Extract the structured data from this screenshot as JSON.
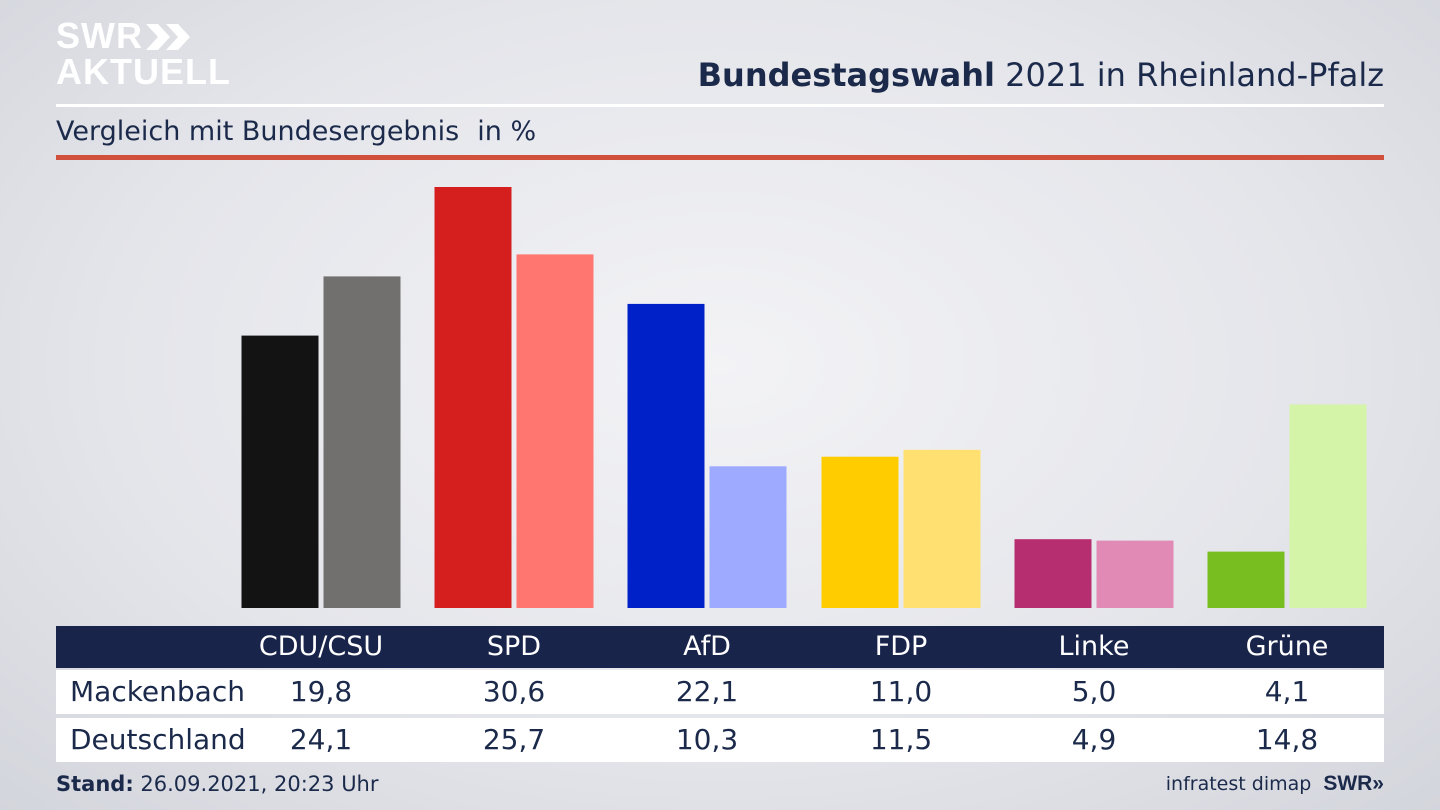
{
  "logo": {
    "line1": "SWR",
    "line2": "AKTUELL",
    "chevrons": "»"
  },
  "header": {
    "title_bold": "Bundestagswahl",
    "title_rest": "2021 in Rheinland-Pfalz",
    "subtitle": "Vergleich mit Bundesergebnis",
    "unit": "in %"
  },
  "colors": {
    "navy": "#18244a",
    "accent_red": "#d0503c",
    "primary": [
      "#131313",
      "#d51e1e",
      "#0021c8",
      "#ffcc00",
      "#b62d70",
      "#78be20"
    ],
    "secondary": [
      "#72706f",
      "#ff7570",
      "#9eaaff",
      "#ffe070",
      "#e18ab6",
      "#d4f4a8"
    ]
  },
  "chart_data": {
    "type": "bar",
    "categories": [
      "CDU/CSU",
      "SPD",
      "AfD",
      "FDP",
      "Linke",
      "Grüne"
    ],
    "series": [
      {
        "name": "Mackenbach",
        "values": [
          19.8,
          30.6,
          22.1,
          11.0,
          5.0,
          4.1
        ]
      },
      {
        "name": "Deutschland",
        "values": [
          24.1,
          25.7,
          10.3,
          11.5,
          4.9,
          14.8
        ]
      }
    ],
    "ylim": [
      0,
      30.6
    ],
    "grid": false,
    "legend": "table-bottom"
  },
  "table": {
    "headers": [
      "CDU/CSU",
      "SPD",
      "AfD",
      "FDP",
      "Linke",
      "Grüne"
    ],
    "rows": [
      {
        "label": "Mackenbach",
        "values": [
          "19,8",
          "30,6",
          "22,1",
          "11,0",
          "5,0",
          "4,1"
        ]
      },
      {
        "label": "Deutschland",
        "values": [
          "24,1",
          "25,7",
          "10,3",
          "11,5",
          "4,9",
          "14,8"
        ]
      }
    ]
  },
  "footer": {
    "stand_label": "Stand:",
    "stand_value": "26.09.2021, 20:23 Uhr",
    "source": "infratest dimap",
    "brand": "SWR»"
  }
}
